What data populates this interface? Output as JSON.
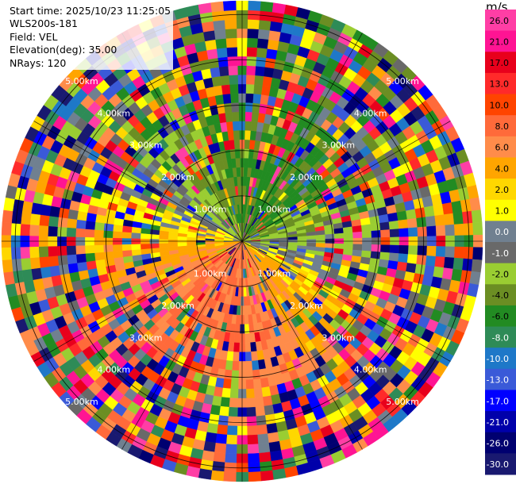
{
  "header": {
    "start_time": "Start time: 2025/10/23 11:25:05",
    "instrument": "WLS200s-181",
    "field": "Field: VEL",
    "elevation": "Elevation(deg): 35.00",
    "nrays": "NRays: 120"
  },
  "chart_data": {
    "type": "heatmap",
    "projection": "polar-ppi",
    "grid": true,
    "ring_labels": [
      "1.00km",
      "2.00km",
      "3.00km",
      "4.00km",
      "5.00km"
    ],
    "max_range_km": 5.3,
    "nrays": 120,
    "colorbar": {
      "unit": "m/s",
      "ticks": [
        "26.0",
        "21.0",
        "17.0",
        "13.0",
        "10.0",
        "8.0",
        "6.0",
        "4.0",
        "2.0",
        "1.0",
        "0.0",
        "-1.0",
        "-2.0",
        "-4.0",
        "-6.0",
        "-8.0",
        "-10.0",
        "-13.0",
        "-17.0",
        "-21.0",
        "-26.0",
        "-30.0"
      ],
      "colors": [
        "#ff3ea5",
        "#ff1493",
        "#e8001c",
        "#ff2a2a",
        "#ff4400",
        "#ff6a3a",
        "#ff8c4a",
        "#ffa500",
        "#ffd700",
        "#ffff00",
        "#708090",
        "#696969",
        "#9acd32",
        "#6b8e23",
        "#228b22",
        "#2e8b57",
        "#1e78c8",
        "#3a5ad8",
        "#0000ff",
        "#0000aa",
        "#000070",
        "#191970"
      ]
    }
  }
}
